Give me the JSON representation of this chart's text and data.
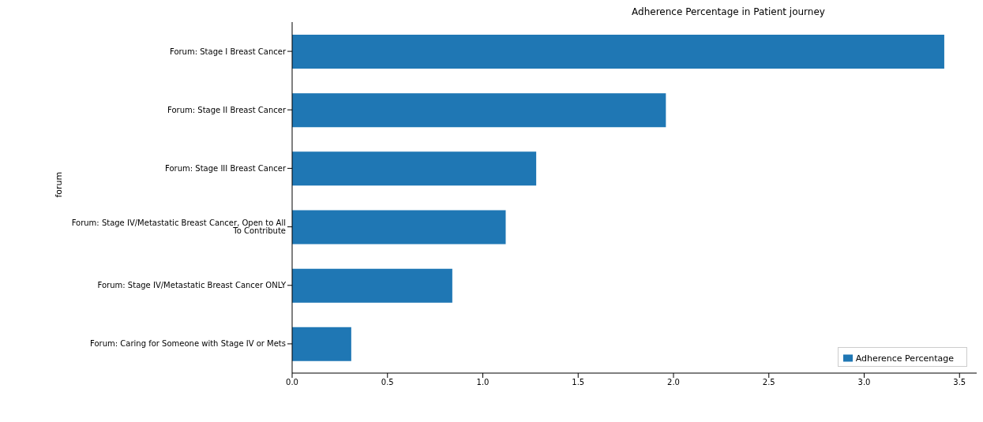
{
  "chart_data": {
    "type": "bar",
    "orientation": "horizontal",
    "title": "Adherence Percentage in Patient journey",
    "ylabel": "forum",
    "categories": [
      "Forum: Stage I Breast Cancer",
      "Forum: Stage II Breast Cancer",
      "Forum: Stage III Breast Cancer",
      "Forum: Stage IV/Metastatic Breast Cancer, Open to All To Contribute",
      "Forum: Stage IV/Metastatic Breast Cancer ONLY",
      "Forum: Caring for Someone with Stage IV or Mets"
    ],
    "series": [
      {
        "name": "Adherence Percentage",
        "color": "#1f77b4",
        "values": [
          3.42,
          1.96,
          1.28,
          1.12,
          0.84,
          0.31
        ]
      }
    ],
    "xlim": [
      0,
      3.59
    ],
    "xticks": [
      {
        "value": 0,
        "label": "0.0"
      },
      {
        "value": 0.5,
        "label": "0.5"
      },
      {
        "value": 1,
        "label": "1.0"
      },
      {
        "value": 1.5,
        "label": "1.5"
      },
      {
        "value": 2,
        "label": "2.0"
      },
      {
        "value": 2.5,
        "label": "2.5"
      },
      {
        "value": 3,
        "label": "3.0"
      },
      {
        "value": 3.5,
        "label": "3.5"
      }
    ],
    "grid": false,
    "legend": "bottom right"
  }
}
